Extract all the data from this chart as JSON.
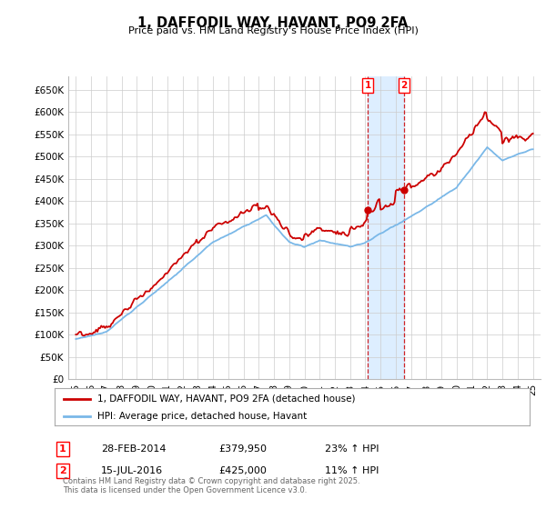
{
  "title": "1, DAFFODIL WAY, HAVANT, PO9 2FA",
  "subtitle": "Price paid vs. HM Land Registry's House Price Index (HPI)",
  "ylim": [
    0,
    680000
  ],
  "yticks": [
    0,
    50000,
    100000,
    150000,
    200000,
    250000,
    300000,
    350000,
    400000,
    450000,
    500000,
    550000,
    600000,
    650000
  ],
  "ytick_labels": [
    "£0",
    "£50K",
    "£100K",
    "£150K",
    "£200K",
    "£250K",
    "£300K",
    "£350K",
    "£400K",
    "£450K",
    "£500K",
    "£550K",
    "£600K",
    "£650K"
  ],
  "hpi_color": "#7ab8e8",
  "price_color": "#cc0000",
  "shade_color": "#ddeeff",
  "marker1_date": 2014.16,
  "marker1_value": 379950,
  "marker2_date": 2016.54,
  "marker2_value": 425000,
  "legend_line1": "1, DAFFODIL WAY, HAVANT, PO9 2FA (detached house)",
  "legend_line2": "HPI: Average price, detached house, Havant",
  "note1_num": "1",
  "note1_date": "28-FEB-2014",
  "note1_price": "£379,950",
  "note1_hpi": "23% ↑ HPI",
  "note2_num": "2",
  "note2_date": "15-JUL-2016",
  "note2_price": "£425,000",
  "note2_hpi": "11% ↑ HPI",
  "footer": "Contains HM Land Registry data © Crown copyright and database right 2025.\nThis data is licensed under the Open Government Licence v3.0.",
  "background_color": "#ffffff",
  "grid_color": "#cccccc"
}
